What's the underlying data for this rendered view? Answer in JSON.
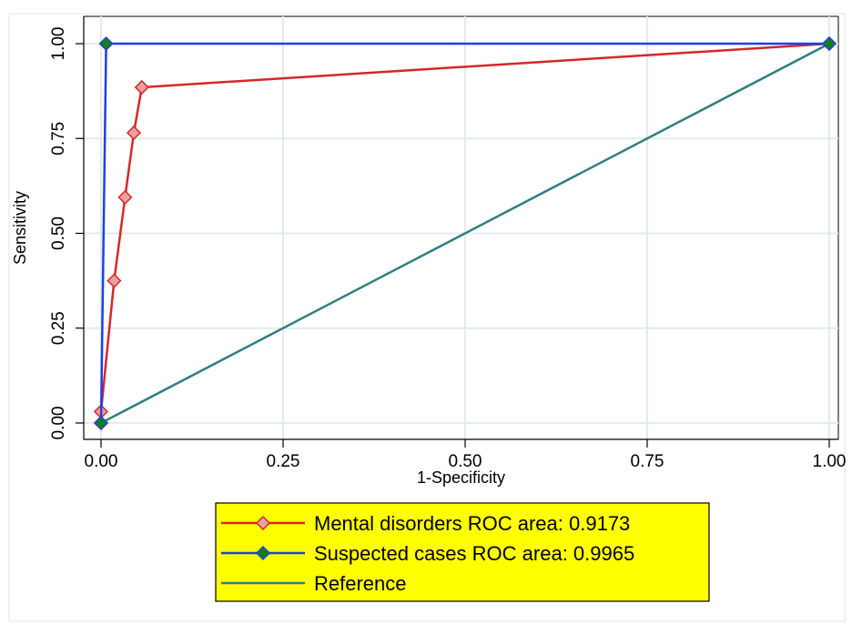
{
  "chart_data": {
    "type": "line",
    "xlabel": "1-Specificity",
    "ylabel": "Sensitivity",
    "xlim": [
      0,
      1
    ],
    "ylim": [
      0,
      1
    ],
    "x_ticks": [
      "0.00",
      "0.25",
      "0.50",
      "0.75",
      "1.00"
    ],
    "y_ticks": [
      "0.00",
      "0.25",
      "0.50",
      "0.75",
      "1.00"
    ],
    "grid": true,
    "legend_position": "bottom",
    "legend_background": "#ffff00",
    "series": [
      {
        "name": "Mental disorders ROC area: 0.9173",
        "color": "#d62728",
        "marker": "diamond",
        "marker_fill": "#e8a0a0",
        "x": [
          0,
          0,
          0.018,
          0.033,
          0.045,
          0.056,
          1
        ],
        "y": [
          0,
          0.03,
          0.375,
          0.595,
          0.765,
          0.885,
          1
        ]
      },
      {
        "name": "Suspected cases ROC area: 0.9965",
        "color": "#1f3fe8",
        "marker": "diamond",
        "marker_fill": "#138013",
        "x": [
          0,
          0.007,
          1
        ],
        "y": [
          0,
          1,
          1
        ]
      },
      {
        "name": "Reference",
        "color": "#2f7f7f",
        "marker": "none",
        "x": [
          0,
          1
        ],
        "y": [
          0,
          1
        ]
      }
    ]
  }
}
